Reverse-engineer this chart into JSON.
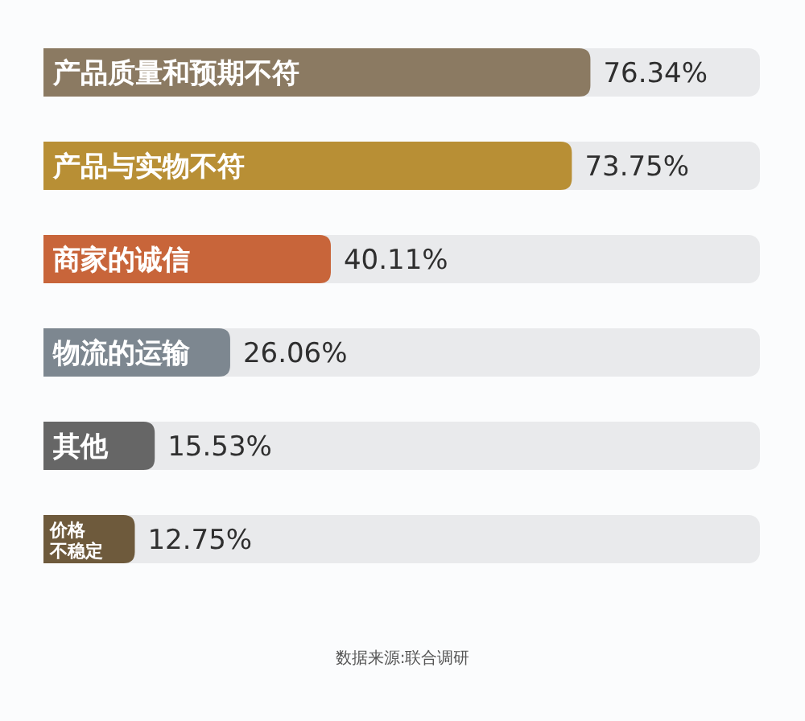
{
  "chart_data": {
    "type": "bar",
    "orientation": "horizontal",
    "categories": [
      "产品质量和预期不符",
      "产品与实物不符",
      "商家的诚信",
      "物流的运输",
      "其他",
      "价格不稳定"
    ],
    "values": [
      76.34,
      73.75,
      40.11,
      26.06,
      15.53,
      12.75
    ],
    "colors": [
      "#8b7a62",
      "#b88f35",
      "#c8653a",
      "#7d8790",
      "#666666",
      "#6e5a3c"
    ],
    "value_labels": [
      "76.34%",
      "73.75%",
      "40.11%",
      "26.06%",
      "15.53%",
      "12.75%"
    ],
    "xlim": [
      0,
      100
    ],
    "annotations": [
      "数据来源:联合调研"
    ]
  }
}
